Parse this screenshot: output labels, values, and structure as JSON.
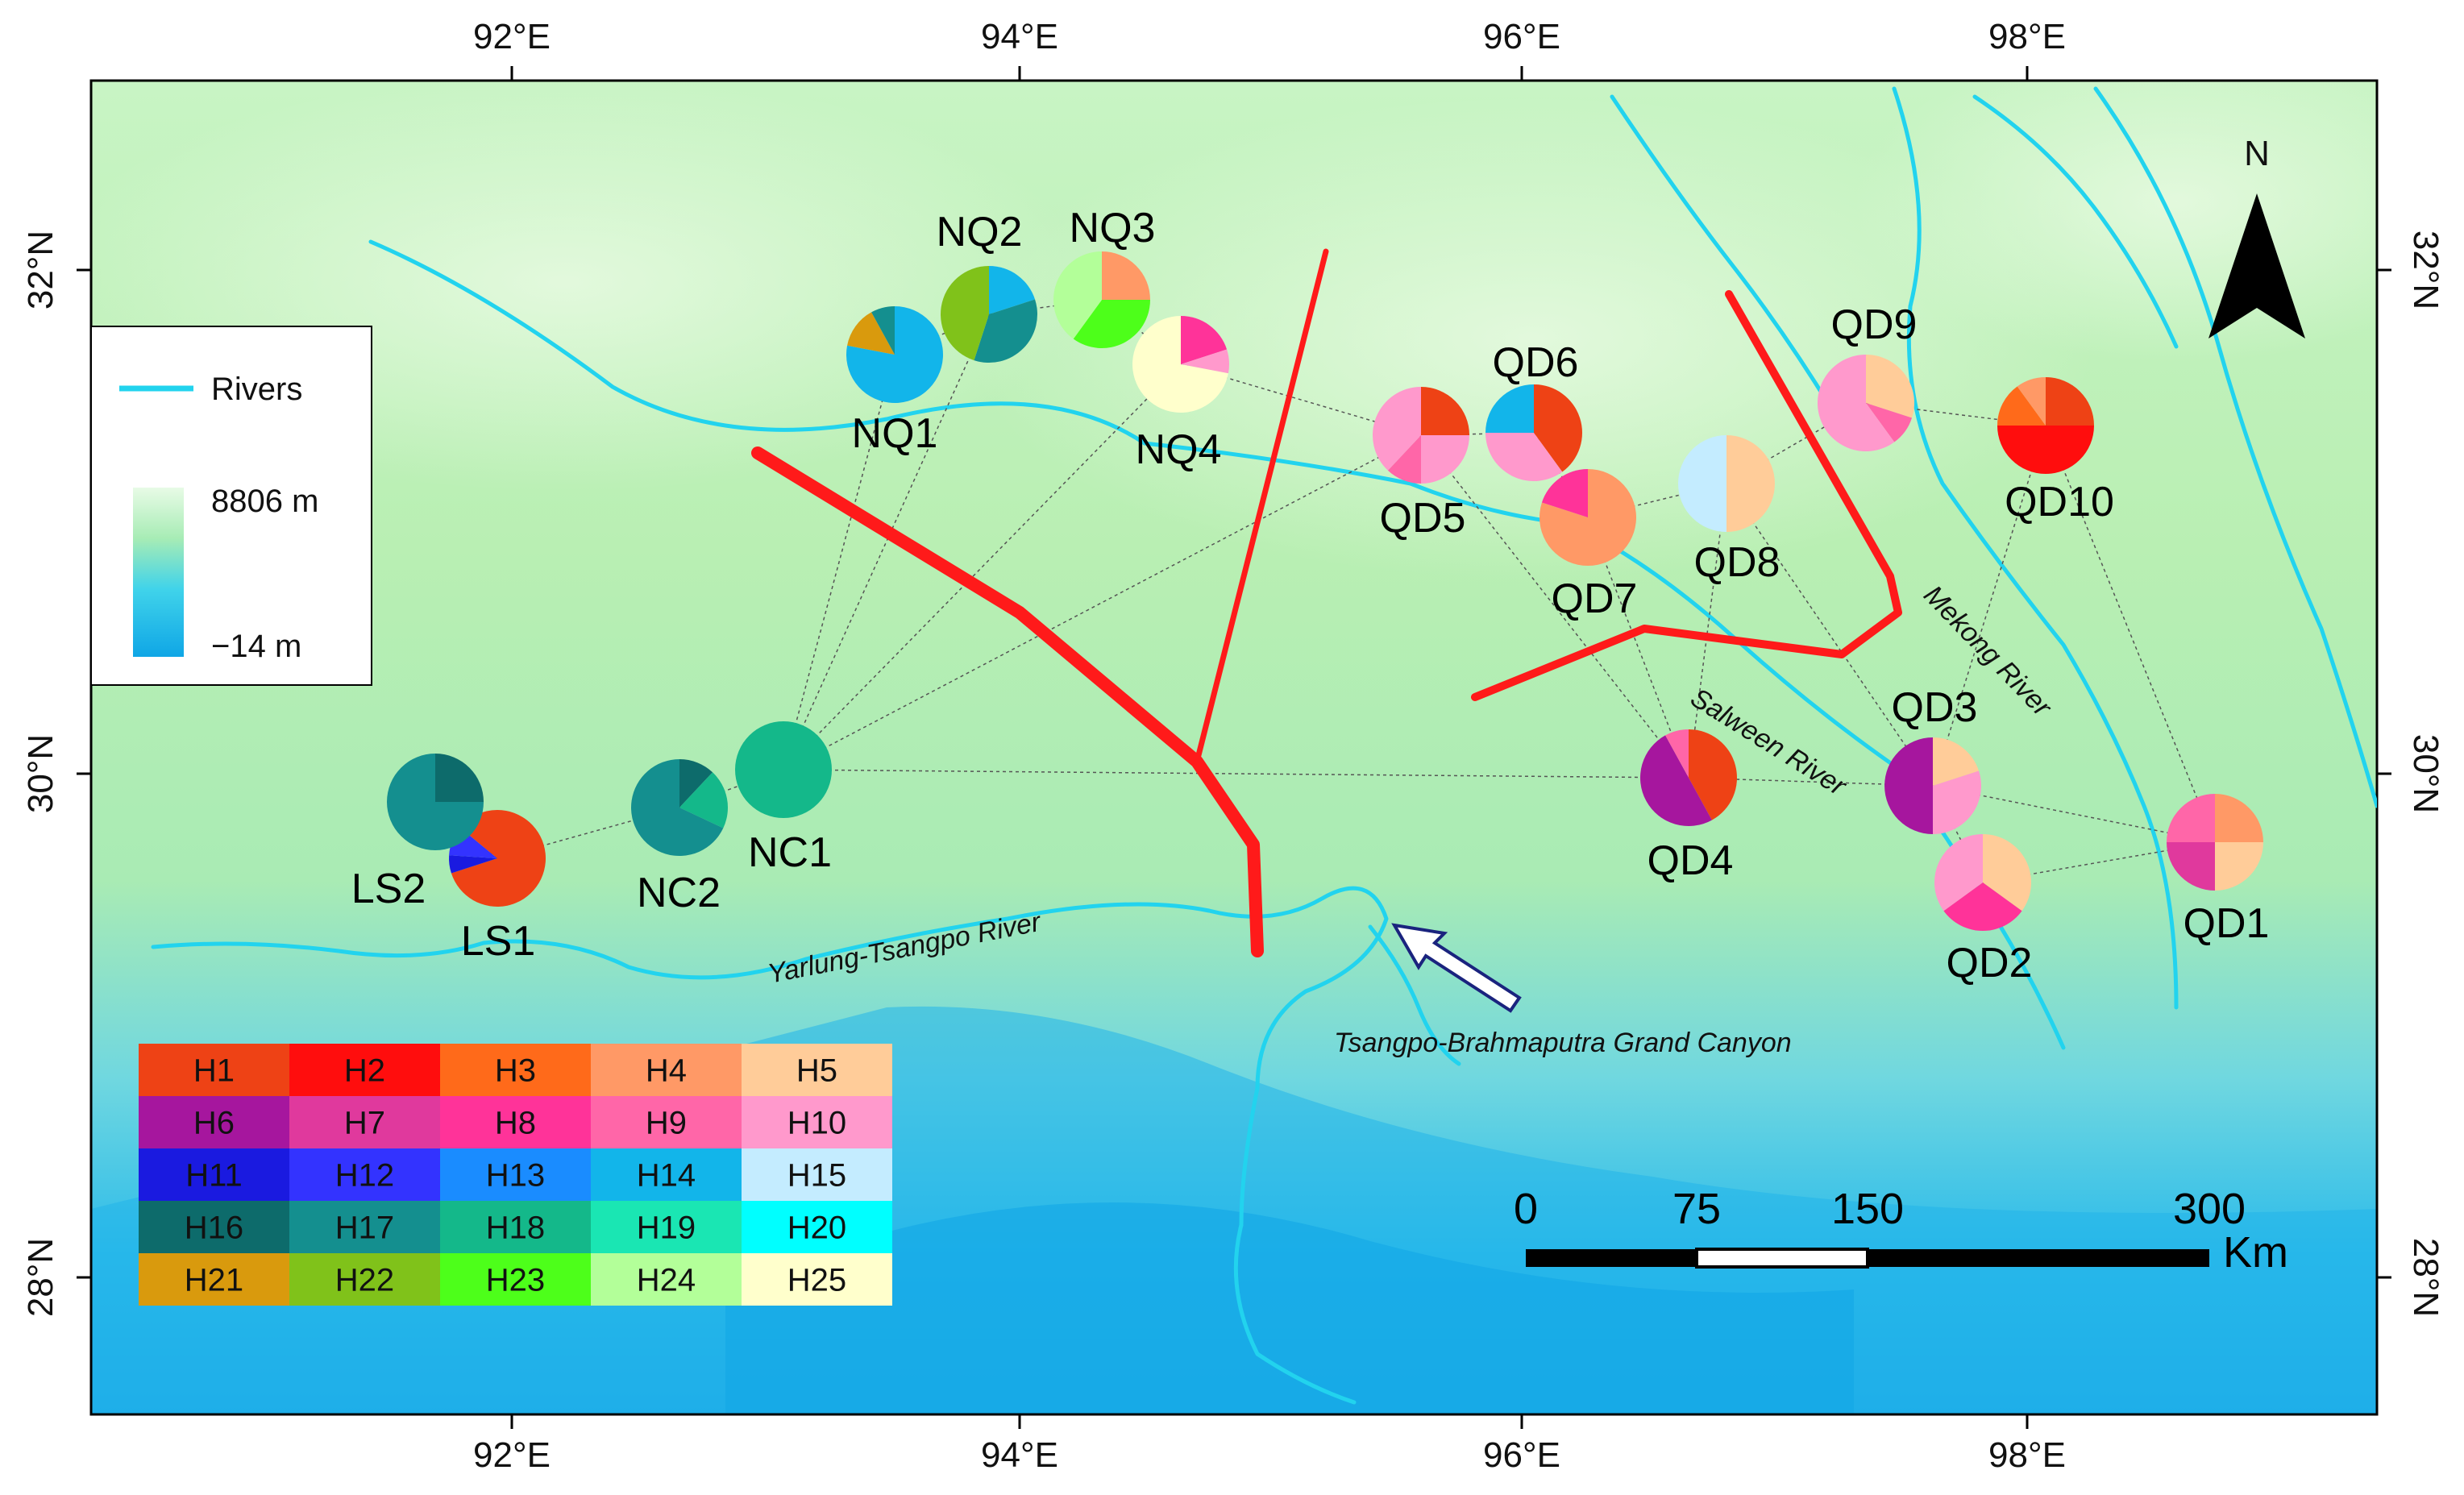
{
  "map": {
    "longitude_labels": [
      "92°E",
      "94°E",
      "96°E",
      "98°E"
    ],
    "latitude_labels": [
      "32°N",
      "30°N",
      "28°N"
    ],
    "north_label": "N",
    "colors": {
      "river": "#22d3ee",
      "barrier": "#ff1a1a",
      "lowland": "#1aa7e8",
      "highland": "#b8f0b0"
    }
  },
  "legend": {
    "rivers_label": "Rivers",
    "elev_max": "8806 m",
    "elev_min": "−14 m"
  },
  "rivers": {
    "yarlung": "Yarlung-Tsangpo River",
    "salween": "Salween River",
    "mekong": "Mekong River",
    "canyon": "Tsangpo-Brahmaputra Grand Canyon"
  },
  "scale": {
    "ticks": [
      "0",
      "75",
      "150",
      "300"
    ],
    "unit": "Km"
  },
  "haplotypes": [
    {
      "name": "H1",
      "color": "#ee4215"
    },
    {
      "name": "H2",
      "color": "#ff0d0d"
    },
    {
      "name": "H3",
      "color": "#ff6a1a"
    },
    {
      "name": "H4",
      "color": "#ff9966"
    },
    {
      "name": "H5",
      "color": "#ffcc99"
    },
    {
      "name": "H6",
      "color": "#a6169e"
    },
    {
      "name": "H7",
      "color": "#e0399d"
    },
    {
      "name": "H8",
      "color": "#ff3399"
    },
    {
      "name": "H9",
      "color": "#ff66a8"
    },
    {
      "name": "H10",
      "color": "#ff99cc"
    },
    {
      "name": "H11",
      "color": "#1a1ae0"
    },
    {
      "name": "H12",
      "color": "#3333ff"
    },
    {
      "name": "H13",
      "color": "#1a8cff"
    },
    {
      "name": "H14",
      "color": "#12b5ea"
    },
    {
      "name": "H15",
      "color": "#c4ecff"
    },
    {
      "name": "H16",
      "color": "#0d6b6b"
    },
    {
      "name": "H17",
      "color": "#148f8f"
    },
    {
      "name": "H18",
      "color": "#14b88a"
    },
    {
      "name": "H19",
      "color": "#1ae6b3"
    },
    {
      "name": "H20",
      "color": "#00ffff"
    },
    {
      "name": "H21",
      "color": "#d99a0d"
    },
    {
      "name": "H22",
      "color": "#80c21a"
    },
    {
      "name": "H23",
      "color": "#4dff1a"
    },
    {
      "name": "H24",
      "color": "#b3ff99"
    },
    {
      "name": "H25",
      "color": "#ffffcc"
    }
  ],
  "sites": [
    {
      "name": "LS1",
      "slices": [
        [
          "H1",
          0.7
        ],
        [
          "H11",
          0.06
        ],
        [
          "H12",
          0.1
        ],
        [
          "H1",
          0.14
        ]
      ]
    },
    {
      "name": "LS2",
      "slices": [
        [
          "H16",
          0.25
        ],
        [
          "H17",
          0.75
        ]
      ]
    },
    {
      "name": "NC1",
      "slices": [
        [
          "H18",
          1.0
        ]
      ]
    },
    {
      "name": "NC2",
      "slices": [
        [
          "H16",
          0.12
        ],
        [
          "H18",
          0.2
        ],
        [
          "H17",
          0.68
        ]
      ]
    },
    {
      "name": "NQ1",
      "slices": [
        [
          "H14",
          0.78
        ],
        [
          "H21",
          0.14
        ],
        [
          "H17",
          0.08
        ]
      ]
    },
    {
      "name": "NQ2",
      "slices": [
        [
          "H14",
          0.2
        ],
        [
          "H17",
          0.35
        ],
        [
          "H22",
          0.45
        ]
      ]
    },
    {
      "name": "NQ3",
      "slices": [
        [
          "H4",
          0.25
        ],
        [
          "H23",
          0.35
        ],
        [
          "H24",
          0.4
        ]
      ]
    },
    {
      "name": "NQ4",
      "slices": [
        [
          "H8",
          0.2
        ],
        [
          "H10",
          0.08
        ],
        [
          "H25",
          0.72
        ]
      ]
    },
    {
      "name": "QD5",
      "slices": [
        [
          "H1",
          0.25
        ],
        [
          "H10",
          0.25
        ],
        [
          "H9",
          0.12
        ],
        [
          "H10",
          0.38
        ]
      ]
    },
    {
      "name": "QD6",
      "slices": [
        [
          "H1",
          0.4
        ],
        [
          "H10",
          0.35
        ],
        [
          "H14",
          0.25
        ]
      ]
    },
    {
      "name": "QD7",
      "slices": [
        [
          "H4",
          0.8
        ],
        [
          "H8",
          0.2
        ]
      ]
    },
    {
      "name": "QD8",
      "slices": [
        [
          "H5",
          0.5
        ],
        [
          "H15",
          0.5
        ]
      ]
    },
    {
      "name": "QD9",
      "slices": [
        [
          "H5",
          0.3
        ],
        [
          "H9",
          0.1
        ],
        [
          "H10",
          0.6
        ]
      ]
    },
    {
      "name": "QD10",
      "slices": [
        [
          "H1",
          0.25
        ],
        [
          "H2",
          0.5
        ],
        [
          "H3",
          0.15
        ],
        [
          "H4",
          0.1
        ]
      ]
    },
    {
      "name": "QD4",
      "slices": [
        [
          "H1",
          0.42
        ],
        [
          "H6",
          0.5
        ],
        [
          "H9",
          0.08
        ]
      ]
    },
    {
      "name": "QD3",
      "slices": [
        [
          "H5",
          0.2
        ],
        [
          "H10",
          0.3
        ],
        [
          "H6",
          0.5
        ]
      ]
    },
    {
      "name": "QD2",
      "slices": [
        [
          "H5",
          0.35
        ],
        [
          "H8",
          0.3
        ],
        [
          "H10",
          0.35
        ]
      ]
    },
    {
      "name": "QD1",
      "slices": [
        [
          "H4",
          0.25
        ],
        [
          "H5",
          0.25
        ],
        [
          "H7",
          0.25
        ],
        [
          "H9",
          0.25
        ]
      ]
    }
  ]
}
